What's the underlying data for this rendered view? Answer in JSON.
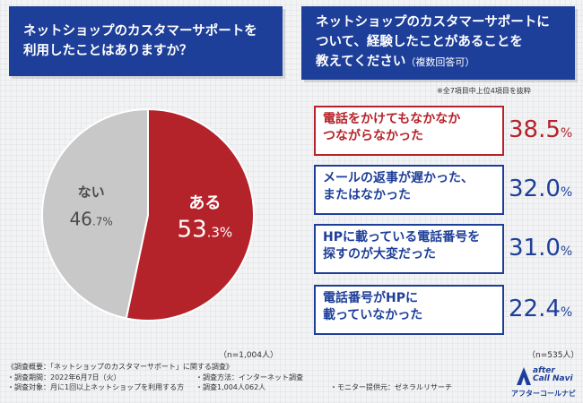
{
  "left_panel": {
    "question": "ネットショップのカスタマーサポートを\n利用したことはありますか？",
    "sample_size": "（n=1,004人）"
  },
  "right_panel": {
    "question": "ネットショップのカスタマーサポートに\nついて、経験したことがあることを\n教えてください",
    "question_suffix": "（複数回答可）",
    "note": "※全7項目中上位4項目を抜粋",
    "sample_size": "（n=535人）"
  },
  "colors": {
    "navy": "#1e3f99",
    "red": "#b5232a",
    "gray": "#c8c8c8",
    "gray_text": "#4a4a4a"
  },
  "chart_data": [
    {
      "type": "pie",
      "title": "ネットショップのカスタマーサポートを利用したことはありますか？",
      "slices": [
        {
          "label": "ある",
          "value": 53.3,
          "display_number": "53",
          "display_decimal": ".3",
          "unit": "%",
          "color": "#b5232a"
        },
        {
          "label": "ない",
          "value": 46.7,
          "display_number": "46",
          "display_decimal": ".7",
          "unit": "%",
          "color": "#c8c8c8"
        }
      ],
      "n": "n=1,004人"
    },
    {
      "type": "table",
      "title": "ネットショップのカスタマーサポートについて、経験したことがあることを教えてください（複数回答可）",
      "items": [
        {
          "label": "電話をかけてもなかなか\nつながらなかった",
          "value": 38.5,
          "display": "38.5",
          "unit": "%",
          "highlight": true
        },
        {
          "label": "メールの返事が遅かった、\nまたはなかった",
          "value": 32.0,
          "display": "32.0",
          "unit": "%",
          "highlight": false
        },
        {
          "label": "HPに載っている電話番号を\n探すのが大変だった",
          "value": 31.0,
          "display": "31.0",
          "unit": "%",
          "highlight": false
        },
        {
          "label": "電話番号がHPに\n載っていなかった",
          "value": 22.4,
          "display": "22.4",
          "unit": "%",
          "highlight": false
        }
      ],
      "n": "n=535人"
    }
  ],
  "footer": {
    "overview": "《調査概要：「ネットショップのカスタマーサポート」に関する調査》",
    "period": "・調査期間：2022年6月7日（火）",
    "method": "・調査方法：インターネット調査",
    "target": "・調査対象：月に1回以上ネットショップを利用する方",
    "respondents": "・調査1,004人062人",
    "provider": "・モニター提供元：ゼネラルリサーチ"
  },
  "logo": {
    "name_en": "after\nCall Navi",
    "name_jp": "アフターコールナビ"
  }
}
